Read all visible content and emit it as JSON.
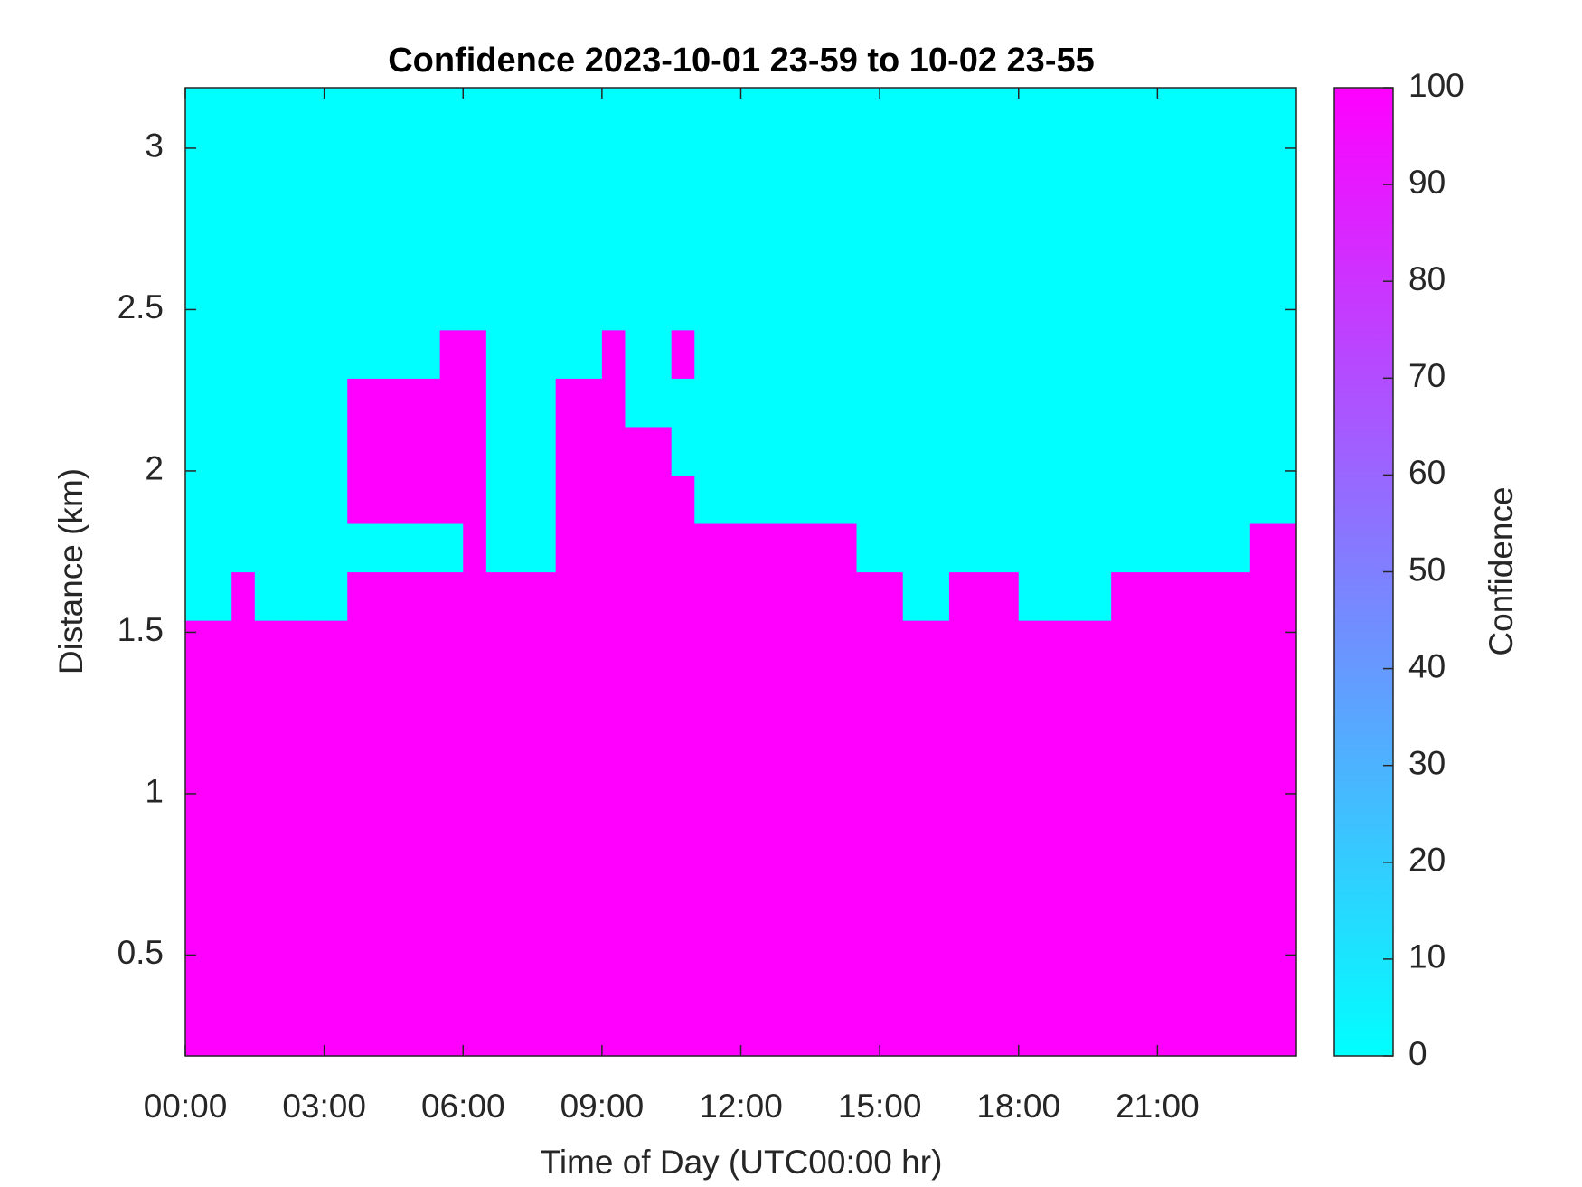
{
  "chart_data": {
    "type": "heatmap",
    "title": "Confidence 2023-10-01 23-59 to 10-02 23-55",
    "x_label": "Time of Day (UTC00:00 hr)",
    "y_label": "Distance (km)",
    "colorbar_label": "Confidence",
    "colormap": [
      "#00ffff",
      "#ff00ff"
    ],
    "zlim": [
      0,
      100
    ],
    "zticks": [
      0,
      10,
      20,
      30,
      40,
      50,
      60,
      70,
      80,
      90,
      100
    ],
    "xlim": [
      0,
      24
    ],
    "xticks": [
      {
        "value": 0,
        "label": "00:00"
      },
      {
        "value": 3,
        "label": "03:00"
      },
      {
        "value": 6,
        "label": "06:00"
      },
      {
        "value": 9,
        "label": "09:00"
      },
      {
        "value": 12,
        "label": "12:00"
      },
      {
        "value": 15,
        "label": "15:00"
      },
      {
        "value": 18,
        "label": "18:00"
      },
      {
        "value": 21,
        "label": "21:00"
      }
    ],
    "ylim": [
      0.1875,
      3.1875
    ],
    "yticks": [
      0.5,
      1,
      1.5,
      2,
      2.5,
      3
    ],
    "xbins": [
      0,
      0.5,
      1,
      1.5,
      2,
      2.5,
      3,
      3.5,
      4,
      4.5,
      5,
      5.5,
      6,
      6.5,
      7,
      7.5,
      8,
      8.5,
      9,
      9.5,
      10,
      10.5,
      11,
      11.5,
      12,
      12.5,
      13,
      13.5,
      14,
      14.5,
      15,
      15.5,
      16,
      16.5,
      17,
      17.5,
      18,
      18.5,
      19,
      19.5,
      20,
      20.5,
      21,
      21.5,
      22,
      22.5,
      23,
      23.5,
      24
    ],
    "ybins": [
      0.1875,
      0.3375,
      0.4875,
      0.6375,
      0.7875,
      0.9375,
      1.0875,
      1.2375,
      1.3875,
      1.5375,
      1.6875,
      1.8375,
      1.9875,
      2.1375,
      2.2875,
      2.4375,
      2.5875,
      2.7375,
      2.8875,
      3.0375,
      3.1875
    ],
    "z": [
      [
        100,
        100,
        100,
        100,
        100,
        100,
        100,
        100,
        100,
        100,
        100,
        100,
        100,
        100,
        100,
        100,
        100,
        100,
        100,
        100,
        100,
        100,
        100,
        100,
        100,
        100,
        100,
        100,
        100,
        100,
        100,
        100,
        100,
        100,
        100,
        100,
        100,
        100,
        100,
        100,
        100,
        100,
        100,
        100,
        100,
        100,
        100,
        100
      ],
      [
        100,
        100,
        100,
        100,
        100,
        100,
        100,
        100,
        100,
        100,
        100,
        100,
        100,
        100,
        100,
        100,
        100,
        100,
        100,
        100,
        100,
        100,
        100,
        100,
        100,
        100,
        100,
        100,
        100,
        100,
        100,
        100,
        100,
        100,
        100,
        100,
        100,
        100,
        100,
        100,
        100,
        100,
        100,
        100,
        100,
        100,
        100,
        100
      ],
      [
        100,
        100,
        100,
        100,
        100,
        100,
        100,
        100,
        100,
        100,
        100,
        100,
        100,
        100,
        100,
        100,
        100,
        100,
        100,
        100,
        100,
        100,
        100,
        100,
        100,
        100,
        100,
        100,
        100,
        100,
        100,
        100,
        100,
        100,
        100,
        100,
        100,
        100,
        100,
        100,
        100,
        100,
        100,
        100,
        100,
        100,
        100,
        100
      ],
      [
        100,
        100,
        100,
        100,
        100,
        100,
        100,
        100,
        100,
        100,
        100,
        100,
        100,
        100,
        100,
        100,
        100,
        100,
        100,
        100,
        100,
        100,
        100,
        100,
        100,
        100,
        100,
        100,
        100,
        100,
        100,
        100,
        100,
        100,
        100,
        100,
        100,
        100,
        100,
        100,
        100,
        100,
        100,
        100,
        100,
        100,
        100,
        100
      ],
      [
        100,
        100,
        100,
        100,
        100,
        100,
        100,
        100,
        100,
        100,
        100,
        100,
        100,
        100,
        100,
        100,
        100,
        100,
        100,
        100,
        100,
        100,
        100,
        100,
        100,
        100,
        100,
        100,
        100,
        100,
        100,
        100,
        100,
        100,
        100,
        100,
        100,
        100,
        100,
        100,
        100,
        100,
        100,
        100,
        100,
        100,
        100,
        100
      ],
      [
        100,
        100,
        100,
        100,
        100,
        100,
        100,
        100,
        100,
        100,
        100,
        100,
        100,
        100,
        100,
        100,
        100,
        100,
        100,
        100,
        100,
        100,
        100,
        100,
        100,
        100,
        100,
        100,
        100,
        100,
        100,
        100,
        100,
        100,
        100,
        100,
        100,
        100,
        100,
        100,
        100,
        100,
        100,
        100,
        100,
        100,
        100,
        100
      ],
      [
        100,
        100,
        100,
        100,
        100,
        100,
        100,
        100,
        100,
        100,
        100,
        100,
        100,
        100,
        100,
        100,
        100,
        100,
        100,
        100,
        100,
        100,
        100,
        100,
        100,
        100,
        100,
        100,
        100,
        100,
        100,
        100,
        100,
        100,
        100,
        100,
        100,
        100,
        100,
        100,
        100,
        100,
        100,
        100,
        100,
        100,
        100,
        100
      ],
      [
        100,
        100,
        100,
        100,
        100,
        100,
        100,
        100,
        100,
        100,
        100,
        100,
        100,
        100,
        100,
        100,
        100,
        100,
        100,
        100,
        100,
        100,
        100,
        100,
        100,
        100,
        100,
        100,
        100,
        100,
        100,
        100,
        100,
        100,
        100,
        100,
        100,
        100,
        100,
        100,
        100,
        100,
        100,
        100,
        100,
        100,
        100,
        100
      ],
      [
        100,
        100,
        100,
        100,
        100,
        100,
        100,
        100,
        100,
        100,
        100,
        100,
        100,
        100,
        100,
        100,
        100,
        100,
        100,
        100,
        100,
        100,
        100,
        100,
        100,
        100,
        100,
        100,
        100,
        100,
        100,
        100,
        100,
        100,
        100,
        100,
        100,
        100,
        100,
        100,
        100,
        100,
        100,
        100,
        100,
        100,
        100,
        100
      ],
      [
        0,
        0,
        100,
        0,
        0,
        0,
        0,
        100,
        100,
        100,
        100,
        100,
        100,
        100,
        100,
        100,
        100,
        100,
        100,
        100,
        100,
        100,
        100,
        100,
        100,
        100,
        100,
        100,
        100,
        100,
        100,
        0,
        0,
        100,
        100,
        100,
        0,
        0,
        0,
        0,
        100,
        100,
        100,
        100,
        100,
        100,
        100,
        100
      ],
      [
        0,
        0,
        0,
        0,
        0,
        0,
        0,
        0,
        0,
        0,
        0,
        0,
        100,
        0,
        0,
        0,
        100,
        100,
        100,
        100,
        100,
        100,
        100,
        100,
        100,
        100,
        100,
        100,
        100,
        0,
        0,
        0,
        0,
        0,
        0,
        0,
        0,
        0,
        0,
        0,
        0,
        0,
        0,
        0,
        0,
        0,
        100,
        100
      ],
      [
        0,
        0,
        0,
        0,
        0,
        0,
        0,
        100,
        100,
        100,
        100,
        100,
        100,
        0,
        0,
        0,
        100,
        100,
        100,
        100,
        100,
        100,
        0,
        0,
        0,
        0,
        0,
        0,
        0,
        0,
        0,
        0,
        0,
        0,
        0,
        0,
        0,
        0,
        0,
        0,
        0,
        0,
        0,
        0,
        0,
        0,
        0,
        0
      ],
      [
        0,
        0,
        0,
        0,
        0,
        0,
        0,
        100,
        100,
        100,
        100,
        100,
        100,
        0,
        0,
        0,
        100,
        100,
        100,
        100,
        100,
        0,
        0,
        0,
        0,
        0,
        0,
        0,
        0,
        0,
        0,
        0,
        0,
        0,
        0,
        0,
        0,
        0,
        0,
        0,
        0,
        0,
        0,
        0,
        0,
        0,
        0,
        0
      ],
      [
        0,
        0,
        0,
        0,
        0,
        0,
        0,
        100,
        100,
        100,
        100,
        100,
        100,
        0,
        0,
        0,
        100,
        100,
        100,
        0,
        0,
        0,
        0,
        0,
        0,
        0,
        0,
        0,
        0,
        0,
        0,
        0,
        0,
        0,
        0,
        0,
        0,
        0,
        0,
        0,
        0,
        0,
        0,
        0,
        0,
        0,
        0,
        0
      ],
      [
        0,
        0,
        0,
        0,
        0,
        0,
        0,
        0,
        0,
        0,
        0,
        100,
        100,
        0,
        0,
        0,
        0,
        0,
        100,
        0,
        0,
        100,
        0,
        0,
        0,
        0,
        0,
        0,
        0,
        0,
        0,
        0,
        0,
        0,
        0,
        0,
        0,
        0,
        0,
        0,
        0,
        0,
        0,
        0,
        0,
        0,
        0,
        0
      ],
      [
        0,
        0,
        0,
        0,
        0,
        0,
        0,
        0,
        0,
        0,
        0,
        0,
        0,
        0,
        0,
        0,
        0,
        0,
        0,
        0,
        0,
        0,
        0,
        0,
        0,
        0,
        0,
        0,
        0,
        0,
        0,
        0,
        0,
        0,
        0,
        0,
        0,
        0,
        0,
        0,
        0,
        0,
        0,
        0,
        0,
        0,
        0,
        0
      ],
      [
        0,
        0,
        0,
        0,
        0,
        0,
        0,
        0,
        0,
        0,
        0,
        0,
        0,
        0,
        0,
        0,
        0,
        0,
        0,
        0,
        0,
        0,
        0,
        0,
        0,
        0,
        0,
        0,
        0,
        0,
        0,
        0,
        0,
        0,
        0,
        0,
        0,
        0,
        0,
        0,
        0,
        0,
        0,
        0,
        0,
        0,
        0,
        0
      ],
      [
        0,
        0,
        0,
        0,
        0,
        0,
        0,
        0,
        0,
        0,
        0,
        0,
        0,
        0,
        0,
        0,
        0,
        0,
        0,
        0,
        0,
        0,
        0,
        0,
        0,
        0,
        0,
        0,
        0,
        0,
        0,
        0,
        0,
        0,
        0,
        0,
        0,
        0,
        0,
        0,
        0,
        0,
        0,
        0,
        0,
        0,
        0,
        0
      ],
      [
        0,
        0,
        0,
        0,
        0,
        0,
        0,
        0,
        0,
        0,
        0,
        0,
        0,
        0,
        0,
        0,
        0,
        0,
        0,
        0,
        0,
        0,
        0,
        0,
        0,
        0,
        0,
        0,
        0,
        0,
        0,
        0,
        0,
        0,
        0,
        0,
        0,
        0,
        0,
        0,
        0,
        0,
        0,
        0,
        0,
        0,
        0,
        0
      ],
      [
        0,
        0,
        0,
        0,
        0,
        0,
        0,
        0,
        0,
        0,
        0,
        0,
        0,
        0,
        0,
        0,
        0,
        0,
        0,
        0,
        0,
        0,
        0,
        0,
        0,
        0,
        0,
        0,
        0,
        0,
        0,
        0,
        0,
        0,
        0,
        0,
        0,
        0,
        0,
        0,
        0,
        0,
        0,
        0,
        0,
        0,
        0,
        0
      ]
    ]
  }
}
